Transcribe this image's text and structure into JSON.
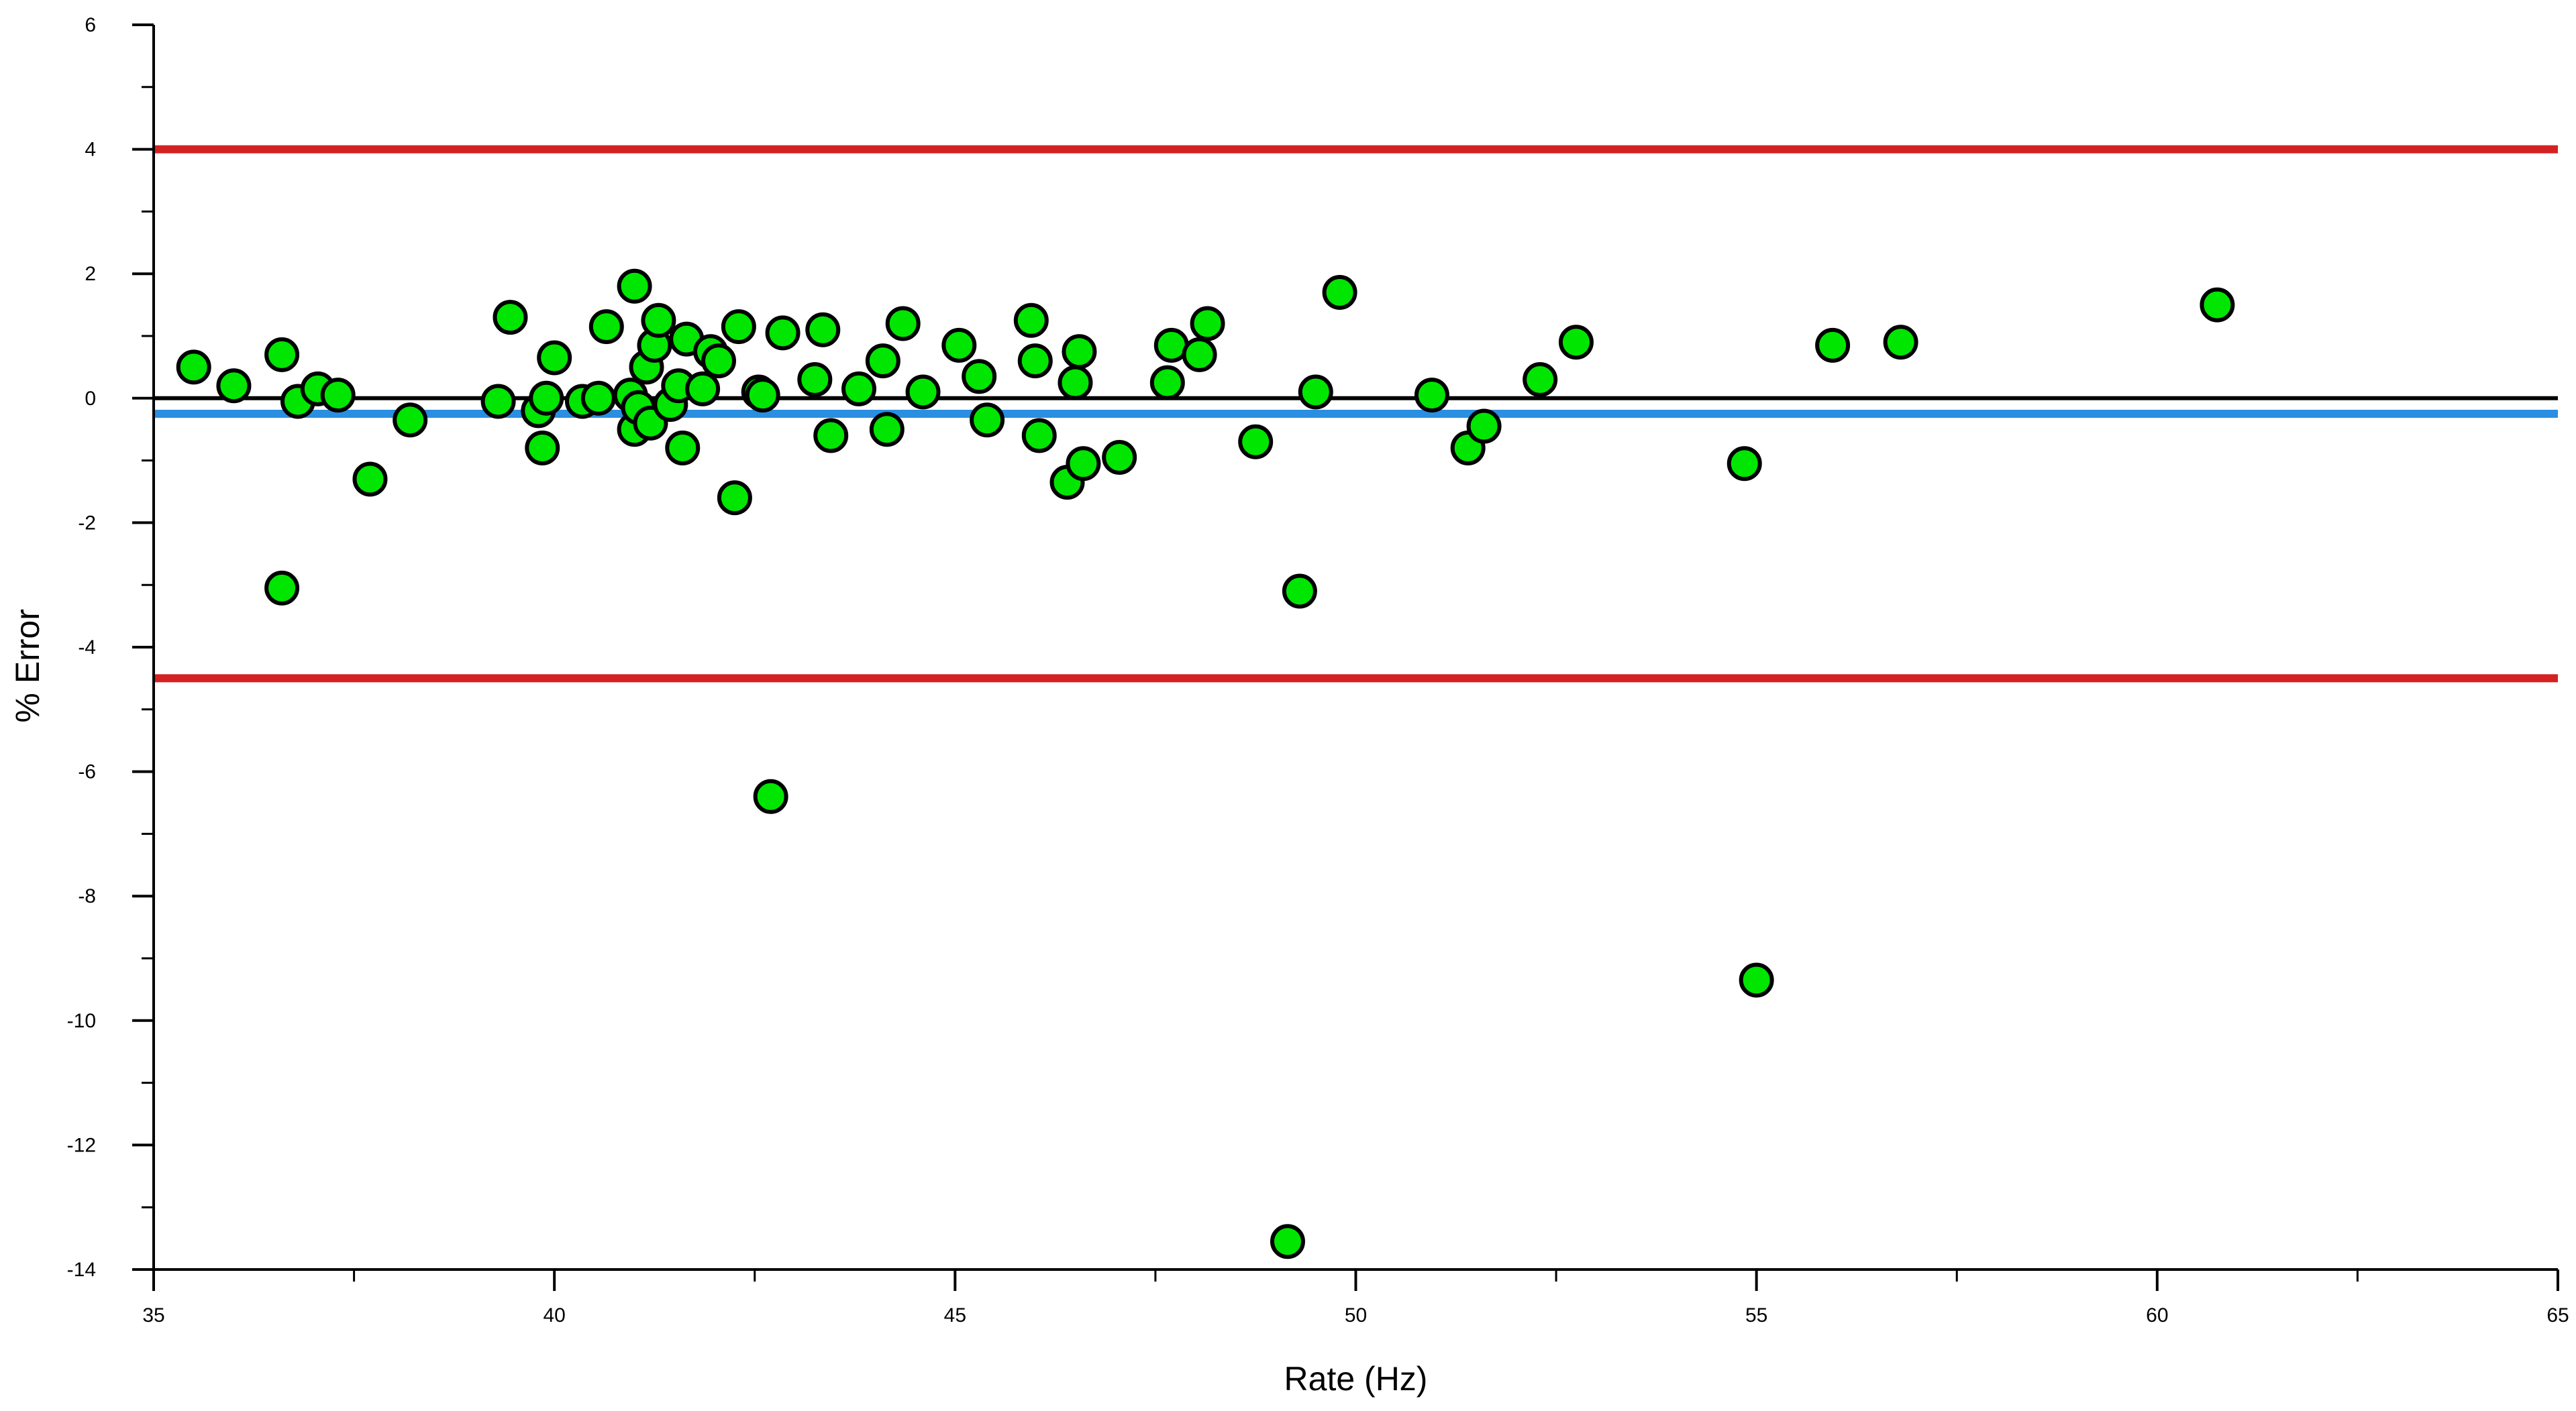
{
  "chart_data": {
    "type": "scatter",
    "title": "",
    "xlabel": "Rate (Hz)",
    "ylabel": "% Error",
    "xlim": [
      35,
      65
    ],
    "ylim": [
      -14,
      6
    ],
    "x_ticks": [
      "35",
      "40",
      "45",
      "50",
      "55",
      "60",
      "65"
    ],
    "y_ticks": [
      "-14",
      "-12",
      "-10",
      "-8",
      "-6",
      "-4",
      "-2",
      "0",
      "2",
      "4",
      "6"
    ],
    "grid": false,
    "legend": "none",
    "reference_lines": [
      {
        "y": 4.0,
        "color": "#d42121"
      },
      {
        "y": -4.5,
        "color": "#d42121"
      },
      {
        "y": 0.0,
        "color": "#000000"
      },
      {
        "y": -0.25,
        "color": "#2a8fe0"
      }
    ],
    "marker_fill": "#00e600",
    "marker_edge": "#000000",
    "points": [
      [
        35.5,
        0.5
      ],
      [
        36.0,
        0.2
      ],
      [
        36.6,
        0.7
      ],
      [
        36.6,
        -3.05
      ],
      [
        36.8,
        -0.05
      ],
      [
        37.05,
        0.15
      ],
      [
        37.3,
        0.05
      ],
      [
        37.7,
        -1.3
      ],
      [
        38.2,
        -0.35
      ],
      [
        39.3,
        -0.05
      ],
      [
        39.45,
        1.3
      ],
      [
        39.8,
        -0.2
      ],
      [
        39.85,
        -0.8
      ],
      [
        39.9,
        0.0
      ],
      [
        40.0,
        0.65
      ],
      [
        40.35,
        -0.05
      ],
      [
        40.55,
        0.0
      ],
      [
        40.65,
        1.15
      ],
      [
        40.95,
        0.05
      ],
      [
        41.0,
        -0.5
      ],
      [
        41.0,
        1.8
      ],
      [
        41.05,
        -0.15
      ],
      [
        41.15,
        0.5
      ],
      [
        41.2,
        -0.4
      ],
      [
        41.25,
        0.85
      ],
      [
        41.3,
        1.25
      ],
      [
        41.45,
        -0.1
      ],
      [
        41.55,
        0.2
      ],
      [
        41.6,
        -0.8
      ],
      [
        41.65,
        0.95
      ],
      [
        41.85,
        0.15
      ],
      [
        41.95,
        0.75
      ],
      [
        42.05,
        0.6
      ],
      [
        42.25,
        -1.6
      ],
      [
        42.3,
        1.15
      ],
      [
        42.55,
        0.1
      ],
      [
        42.6,
        0.05
      ],
      [
        42.7,
        -6.4
      ],
      [
        42.85,
        1.05
      ],
      [
        43.25,
        0.3
      ],
      [
        43.35,
        1.1
      ],
      [
        43.45,
        -0.6
      ],
      [
        43.8,
        0.15
      ],
      [
        44.1,
        0.6
      ],
      [
        44.15,
        -0.5
      ],
      [
        44.35,
        1.2
      ],
      [
        44.6,
        0.1
      ],
      [
        45.05,
        0.85
      ],
      [
        45.3,
        0.35
      ],
      [
        45.4,
        -0.35
      ],
      [
        45.95,
        1.25
      ],
      [
        46.0,
        0.6
      ],
      [
        46.05,
        -0.6
      ],
      [
        46.4,
        -1.35
      ],
      [
        46.5,
        0.25
      ],
      [
        46.55,
        0.75
      ],
      [
        46.6,
        -1.05
      ],
      [
        47.05,
        -0.95
      ],
      [
        47.65,
        0.25
      ],
      [
        47.7,
        0.85
      ],
      [
        48.05,
        0.7
      ],
      [
        48.15,
        1.2
      ],
      [
        48.75,
        -0.7
      ],
      [
        49.15,
        -13.55
      ],
      [
        49.3,
        -3.1
      ],
      [
        49.5,
        0.1
      ],
      [
        49.8,
        1.7
      ],
      [
        50.95,
        0.05
      ],
      [
        51.4,
        -0.8
      ],
      [
        51.6,
        -0.45
      ],
      [
        52.3,
        0.3
      ],
      [
        52.75,
        0.9
      ],
      [
        54.85,
        -1.05
      ],
      [
        55.0,
        -9.35
      ],
      [
        55.95,
        0.85
      ],
      [
        56.8,
        0.9
      ],
      [
        60.75,
        1.5
      ]
    ]
  }
}
